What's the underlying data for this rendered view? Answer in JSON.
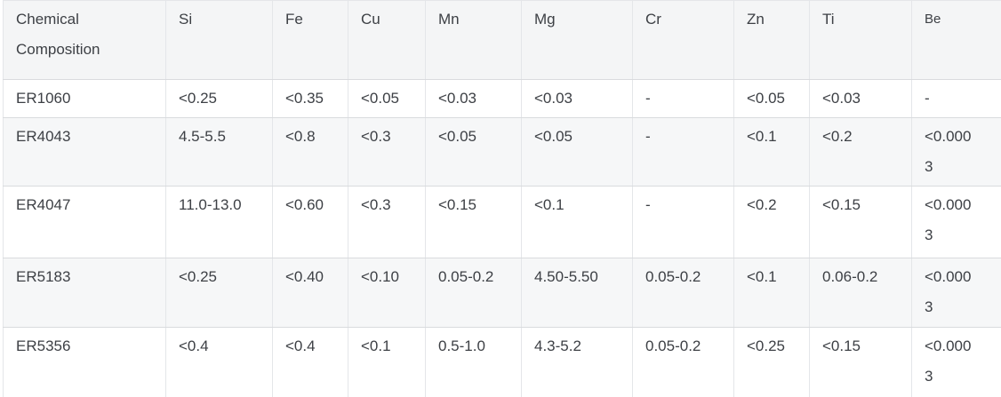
{
  "table": {
    "title": "Chemical Composition",
    "columns": [
      "Chemical Composition",
      "Si",
      "Fe",
      "Cu",
      "Mn",
      "Mg",
      "Cr",
      "Zn",
      "Ti",
      "Be"
    ],
    "rows": [
      {
        "name": "ER1060",
        "values": [
          "<0.25",
          "<0.35",
          "<0.05",
          "<0.03",
          "<0.03",
          "-",
          "<0.05",
          "<0.03",
          "-"
        ]
      },
      {
        "name": "ER4043",
        "values": [
          "4.5-5.5",
          "<0.8",
          "<0.3",
          "<0.05",
          "<0.05",
          "-",
          "<0.1",
          "<0.2",
          "<0.0003"
        ]
      },
      {
        "name": "ER4047",
        "values": [
          "11.0-13.0",
          "<0.60",
          "<0.3",
          "<0.15",
          "<0.1",
          "-",
          "<0.2",
          "<0.15",
          "<0.0003"
        ]
      },
      {
        "name": "ER5183",
        "values": [
          "<0.25",
          "<0.40",
          "<0.10",
          "0.05-0.2",
          "4.50-5.50",
          "0.05-0.2",
          "<0.1",
          "0.06-0.2",
          "<0.0003"
        ]
      },
      {
        "name": "ER5356",
        "values": [
          "<0.4",
          "<0.4",
          "<0.1",
          "0.5-1.0",
          "4.3-5.2",
          "0.05-0.2",
          "<0.25",
          "<0.15",
          "<0.0003"
        ]
      }
    ]
  },
  "colors": {
    "header_bg": "#f4f5f6",
    "shaded_row_bg": "#f6f7f8",
    "plain_row_bg": "#ffffff",
    "vertical_border": "#e4e6e9",
    "horizontal_border": "#d9dbde",
    "text": "#3d4045"
  }
}
